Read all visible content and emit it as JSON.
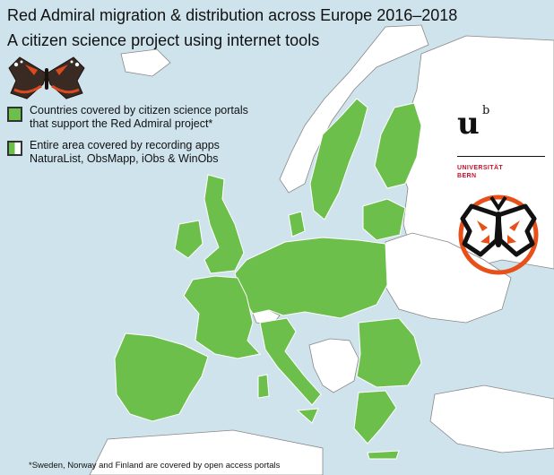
{
  "title_line1": "Red Admiral migration & distribution across Europe 2016–2018",
  "title_line2": "A citizen science project using internet tools",
  "legend": {
    "portals": {
      "line1": "Countries covered by citizen science portals",
      "line2": "that support the Red Admiral project*"
    },
    "apps": {
      "line1": "Entire area covered by recording apps",
      "line2": "NaturaList, ObsMapp, iObs & WinObs"
    }
  },
  "footnote": "*Sweden, Norway and Finland are covered by open access portals",
  "logo": {
    "mark": "u",
    "superscript": "b",
    "line1": "UNIVERSITÄT",
    "line2": "BERN"
  },
  "colors": {
    "sea": "#cfe3ec",
    "covered_country": "#6cbf4a",
    "other_land": "#ffffff",
    "border": "#777777",
    "logo_red": "#c8102e",
    "emblem_orange": "#e8501a"
  },
  "icons": [
    "red-admiral-butterfly-icon",
    "butterfly-emblem-icon"
  ]
}
